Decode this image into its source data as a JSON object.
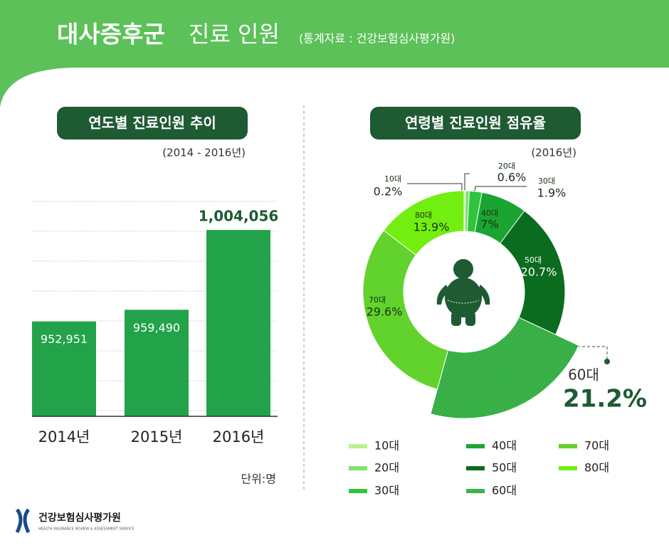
{
  "header": {
    "title_main": "대사증후군",
    "title_sub": "진료 인원",
    "source": "(통계자료 : 건강보험심사평가원)"
  },
  "chart_data": [
    {
      "type": "bar",
      "title": "연도별 진료인원 추이",
      "subtitle": "(2014 - 2016년)",
      "categories": [
        "2014년",
        "2015년",
        "2016년"
      ],
      "values": [
        952951,
        959490,
        1004056
      ],
      "value_labels": [
        "952,951",
        "959,490",
        "1,004,056"
      ],
      "unit": "단위:명",
      "color": "#22a34a",
      "ylim": [
        900000,
        1020000
      ]
    },
    {
      "type": "pie",
      "title": "연령별 진료인원 점유율",
      "subtitle": "(2016년)",
      "categories": [
        "10대",
        "20대",
        "30대",
        "40대",
        "50대",
        "60대",
        "70대",
        "80대"
      ],
      "values": [
        0.2,
        0.6,
        1.9,
        7,
        20.7,
        21.2,
        29.6,
        13.9
      ],
      "value_labels": [
        "0.2%",
        "0.6%",
        "1.9%",
        "7%",
        "20.7%",
        "21.2%",
        "29.6%",
        "13.9%"
      ],
      "colors": [
        "#b9f28e",
        "#7fe26c",
        "#2fc43c",
        "#1aa532",
        "#0b6c1f",
        "#3cb44a",
        "#62d22c",
        "#72ee10"
      ],
      "explode": [
        false,
        false,
        false,
        false,
        false,
        true,
        false,
        false
      ]
    }
  ],
  "footer": {
    "org": "건강보험심사평가원",
    "org_en": "HEALTH INSURANCE REVIEW & ASSESSMENT SERVICE"
  }
}
